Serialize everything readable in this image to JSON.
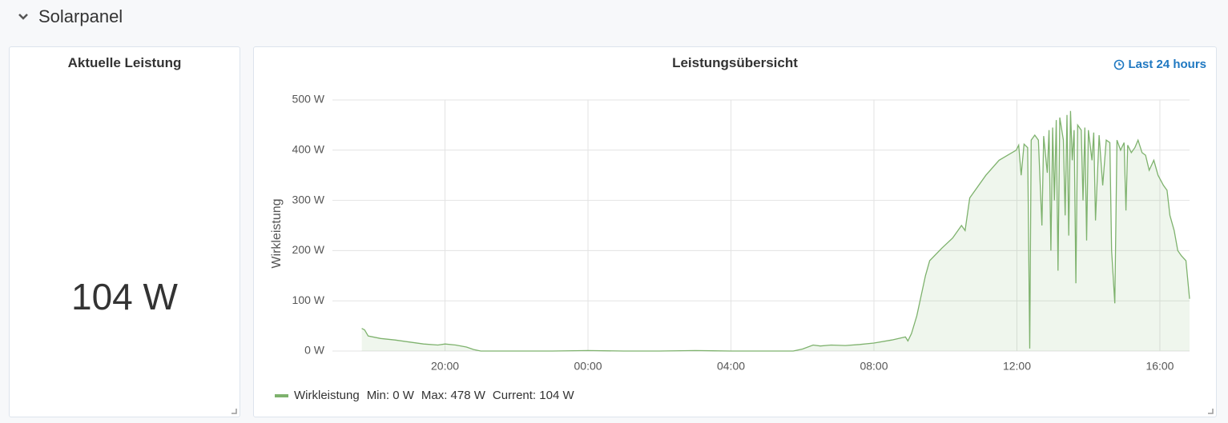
{
  "header": {
    "title": "Solarpanel"
  },
  "stat_panel": {
    "title": "Aktuelle Leistung",
    "value": "104 W"
  },
  "chart_data": {
    "type": "area",
    "title": "Leistungsübersicht",
    "time_range": "Last 24 hours",
    "y_label": "Wirkleistung",
    "x": [
      17.67,
      17.75,
      17.85,
      18.2,
      18.6,
      19.0,
      19.4,
      19.8,
      20.0,
      20.3,
      20.6,
      20.8,
      21.0,
      22,
      23,
      24,
      25,
      26,
      27,
      28,
      29,
      29.74,
      30.0,
      30.3,
      30.5,
      30.8,
      31.2,
      31.6,
      32.0,
      32.5,
      32.88,
      32.95,
      33.05,
      33.2,
      33.44,
      33.56,
      33.9,
      34.2,
      34.45,
      34.55,
      34.68,
      35.13,
      35.5,
      35.98,
      36.05,
      36.12,
      36.2,
      36.3,
      36.36,
      36.4,
      36.5,
      36.6,
      36.7,
      36.75,
      36.85,
      36.9,
      36.95,
      37.0,
      37.05,
      37.1,
      37.15,
      37.2,
      37.3,
      37.35,
      37.4,
      37.45,
      37.5,
      37.55,
      37.6,
      37.65,
      37.7,
      37.8,
      37.85,
      37.9,
      37.95,
      38.0,
      38.1,
      38.15,
      38.2,
      38.3,
      38.4,
      38.5,
      38.6,
      38.65,
      38.74,
      38.8,
      38.9,
      39.0,
      39.05,
      39.1,
      39.2,
      39.3,
      39.39,
      39.5,
      39.6,
      39.7,
      39.83,
      39.95,
      40.1,
      40.2,
      40.28,
      40.4,
      40.5,
      40.6,
      40.73,
      40.83
    ],
    "series": [
      {
        "name": "Wirkleistung",
        "color": "#7eb26d",
        "values": [
          45,
          42,
          30,
          25,
          22,
          18,
          14,
          12,
          14,
          12,
          8,
          3,
          0,
          0,
          0,
          1,
          0,
          0,
          1,
          0,
          0,
          0,
          4,
          12,
          10,
          12,
          11,
          13,
          16,
          22,
          28,
          20,
          35,
          70,
          150,
          180,
          205,
          225,
          250,
          240,
          305,
          350,
          380,
          400,
          410,
          350,
          412,
          405,
          5,
          420,
          430,
          420,
          250,
          428,
          355,
          440,
          200,
          445,
          300,
          460,
          160,
          465,
          420,
          270,
          470,
          230,
          478,
          380,
          440,
          135,
          450,
          440,
          300,
          445,
          220,
          440,
          380,
          435,
          260,
          430,
          330,
          420,
          415,
          200,
          95,
          420,
          400,
          415,
          280,
          410,
          395,
          405,
          420,
          395,
          390,
          360,
          380,
          350,
          330,
          320,
          270,
          240,
          200,
          190,
          180,
          104
        ]
      }
    ],
    "legend_stats": [
      "Min: 0 W",
      "Max: 478 W",
      "Current: 104 W"
    ],
    "xlim": [
      16.85,
      40.83
    ],
    "xticks": [
      {
        "value": 20,
        "label": "20:00"
      },
      {
        "value": 24,
        "label": "00:00"
      },
      {
        "value": 28,
        "label": "04:00"
      },
      {
        "value": 32,
        "label": "08:00"
      },
      {
        "value": 36,
        "label": "12:00"
      },
      {
        "value": 40,
        "label": "16:00"
      }
    ],
    "ylim": [
      0,
      500
    ],
    "yticks": [
      {
        "value": 0,
        "label": "0 W"
      },
      {
        "value": 100,
        "label": "100 W"
      },
      {
        "value": 200,
        "label": "200 W"
      },
      {
        "value": 300,
        "label": "300 W"
      },
      {
        "value": 400,
        "label": "400 W"
      },
      {
        "value": 500,
        "label": "500 W"
      }
    ],
    "grid": true
  }
}
